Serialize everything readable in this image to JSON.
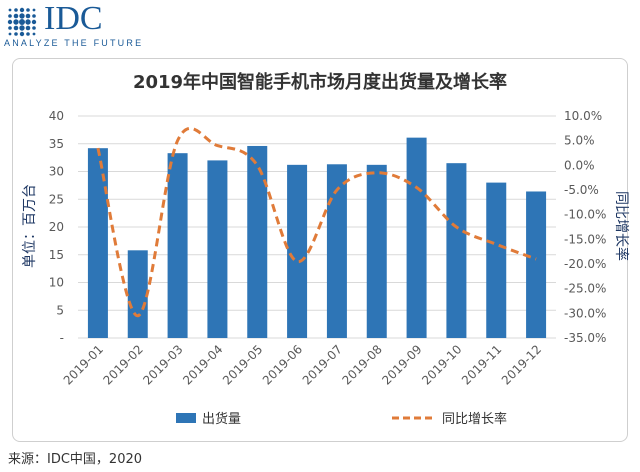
{
  "logo": {
    "word": "IDC",
    "tagline": "ANALYZE THE FUTURE"
  },
  "source": "来源：IDC中国，2020",
  "colors": {
    "bar": "#2e75b6",
    "line": "#e07b39",
    "brand": "#1a5a97"
  },
  "chart_data": {
    "type": "bar",
    "title": "2019年中国智能手机市场月度出货量及增长率",
    "categories": [
      "2019-01",
      "2019-02",
      "2019-03",
      "2019-04",
      "2019-05",
      "2019-06",
      "2019-07",
      "2019-08",
      "2019-09",
      "2019-10",
      "2019-11",
      "2019-12"
    ],
    "series": [
      {
        "name": "出货量",
        "kind": "bar",
        "axis": "left",
        "values": [
          34.2,
          15.8,
          33.3,
          32.0,
          34.6,
          31.2,
          31.3,
          31.2,
          36.1,
          31.5,
          28.0,
          26.4
        ]
      },
      {
        "name": "同比增长率",
        "kind": "line",
        "axis": "right",
        "style": "dashed",
        "values": [
          3.5,
          -30.5,
          5.0,
          4.0,
          0.0,
          -19.5,
          -5.0,
          -1.5,
          -4.5,
          -12.5,
          -16.0,
          -19.0
        ]
      }
    ],
    "ylabel_left": "单位：百万台",
    "ylabel_right": "同比增长率",
    "yticks_left": [
      "-",
      "5",
      "10",
      "15",
      "20",
      "25",
      "30",
      "35",
      "40"
    ],
    "yticks_right": [
      "-35.0%",
      "-30.0%",
      "-25.0%",
      "-20.0%",
      "-15.0%",
      "-10.0%",
      "-5.0%",
      "0.0%",
      "5.0%",
      "10.0%"
    ],
    "ylim_left": [
      0,
      40
    ],
    "ylim_right": [
      -35,
      10
    ],
    "grid": true,
    "legend": "bottom"
  }
}
